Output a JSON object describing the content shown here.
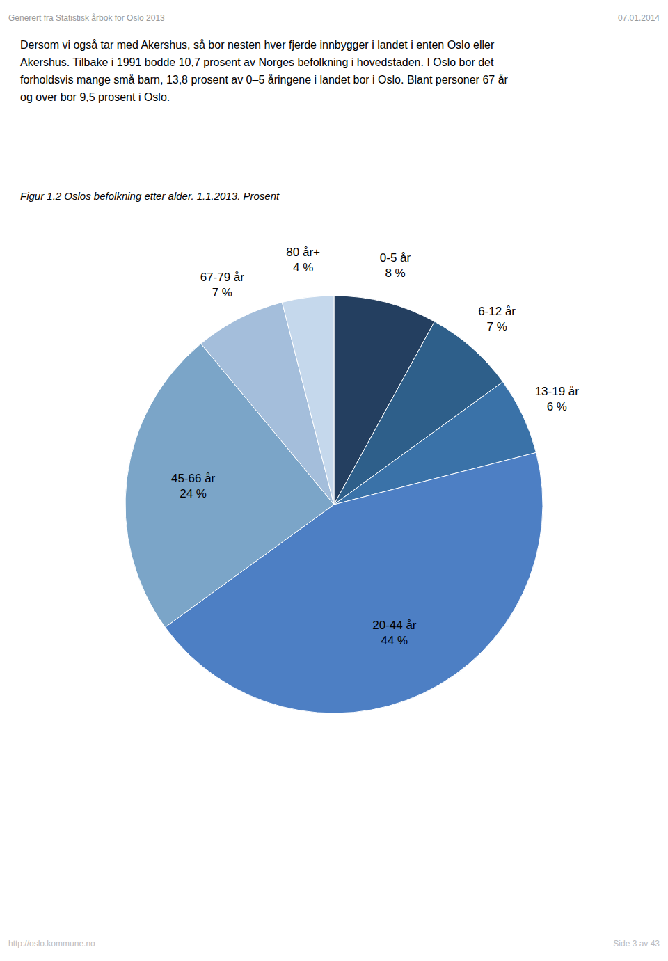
{
  "title_header": "Generert fra Statistisk årbok for Oslo 2013",
  "date_header": "07.01.2014",
  "body_text": "Dersom vi også tar med Akershus, så bor nesten hver fjerde innbygger i landet i enten Oslo eller\nAkershus. Tilbake i 1991 bodde 10,7 prosent av Norges befolkning i hovedstaden. I Oslo bor det\nforholdsvis mange små barn, 13,8 prosent av 0–5 åringene i landet bor i Oslo. Blant personer 67 år\nog over bor 9,5 prosent i Oslo.",
  "footer_left": "http://oslo.kommune.no",
  "footer_right": "Side 3 av 43",
  "chart_data": {
    "type": "pie",
    "title": "Figur 1.2 Oslos befolkning etter alder. 1.1.2013. Prosent",
    "categories": [
      "0-5 år",
      "6-12 år",
      "13-19 år",
      "20-44 år",
      "45-66 år",
      "67-79 år",
      "80 år+"
    ],
    "values": [
      8,
      7,
      6,
      44,
      24,
      7,
      4
    ],
    "value_labels": [
      "8 %",
      "7 %",
      "6 %",
      "44 %",
      "24 %",
      "7 %",
      "4 %"
    ],
    "colors": [
      "#243F60",
      "#2E5F8A",
      "#3A72A8",
      "#4D7FC4",
      "#7BA5C8",
      "#A4BEDB",
      "#C5D8EC"
    ],
    "data_labels": true
  }
}
